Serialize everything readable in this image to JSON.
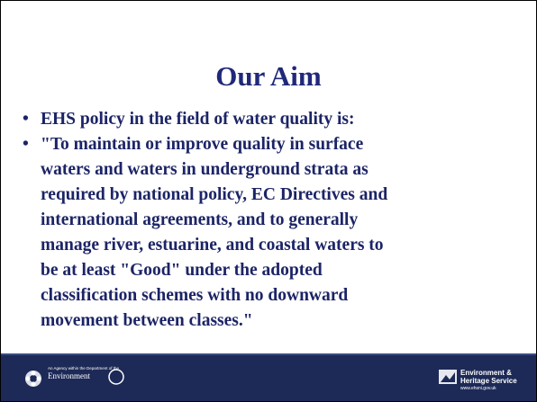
{
  "header": {
    "title": "Our Aim"
  },
  "bullets": [
    [
      "EHS policy in the field of water quality is:"
    ],
    [
      "\"To maintain or improve quality in surface",
      "waters and waters in underground strata as",
      "required by national policy, EC Directives and",
      "international agreements, and to generally",
      "manage river, estuarine, and coastal waters to",
      "be at least \"Good\" under the adopted",
      "classification schemes with no downward",
      "movement between classes.\""
    ]
  ],
  "footer": {
    "left": {
      "agency": "An Agency within the Department of the",
      "department": "Environment"
    },
    "right": {
      "name_line1": "Environment &",
      "name_line2": "Heritage Service",
      "url": "www.ehsni.gov.uk"
    }
  }
}
